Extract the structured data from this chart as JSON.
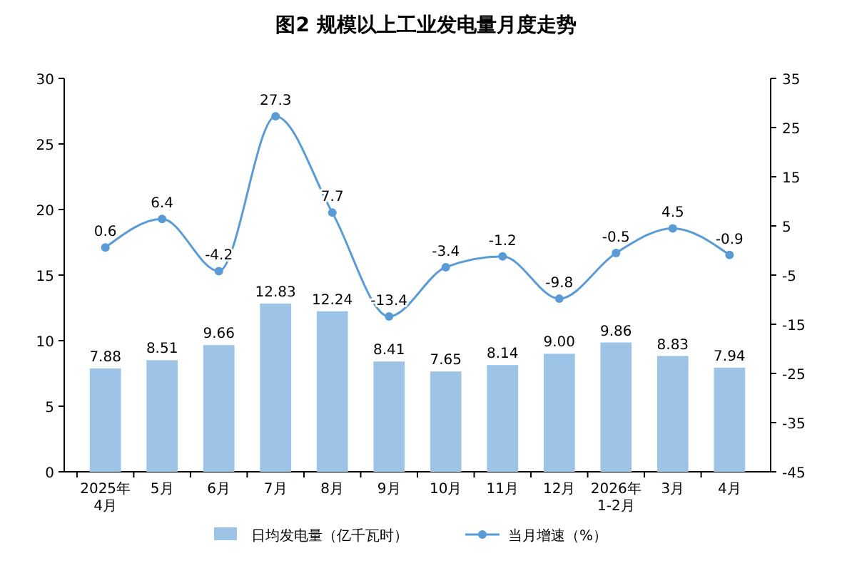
{
  "chart_data": {
    "type": "bar",
    "title": "图2 规模以上工业发电量月度走势",
    "categories": [
      "2025年\n4月",
      "5月",
      "6月",
      "7月",
      "8月",
      "9月",
      "10月",
      "11月",
      "12月",
      "2026年\n1-2月",
      "3月",
      "4月"
    ],
    "series": [
      {
        "name": "日均发电量（亿千瓦时）",
        "color": "#9dc3e6",
        "values": [
          7.88,
          8.51,
          9.66,
          12.83,
          12.24,
          8.41,
          7.65,
          8.14,
          9.0,
          9.86,
          8.83,
          7.94
        ],
        "value_labels": [
          "7.88",
          "8.51",
          "9.66",
          "12.83",
          "12.24",
          "8.41",
          "7.65",
          "8.14",
          "9.00",
          "9.86",
          "8.83",
          "7.94"
        ]
      },
      {
        "name": "当月增速（%）",
        "type": "line",
        "axis": "y2",
        "color": "#5b9bd5",
        "values": [
          0.6,
          6.4,
          -4.2,
          27.3,
          7.7,
          -13.4,
          -3.4,
          -1.2,
          -9.8,
          -0.5,
          4.5,
          -0.9
        ],
        "value_labels": [
          "0.6",
          "6.4",
          "-4.2",
          "27.3",
          "7.7",
          "-13.4",
          "-3.4",
          "-1.2",
          "-9.8",
          "-0.5",
          "4.5",
          "-0.9"
        ]
      }
    ],
    "ylim": [
      0,
      30
    ],
    "yticks": [
      0,
      5,
      10,
      15,
      20,
      25,
      30
    ],
    "y2lim": [
      -45,
      35
    ],
    "y2ticks": [
      -45,
      -35,
      -25,
      -15,
      -5,
      5,
      15,
      25,
      35
    ],
    "legend": "bottom",
    "marker": "circle",
    "line_style": "solid"
  }
}
